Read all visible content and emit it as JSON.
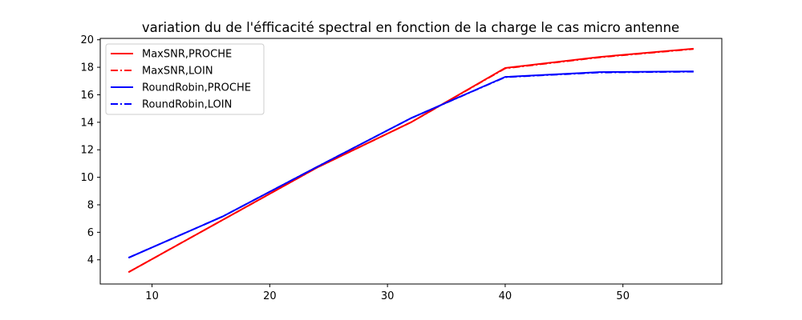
{
  "chart_data": {
    "type": "line",
    "title": "variation du de l'éfficacité spectral en fonction de la charge le cas micro antenne",
    "xlabel": "",
    "ylabel": "",
    "xlim": [
      5.6,
      58.4
    ],
    "ylim": [
      2.24,
      20.1
    ],
    "x_ticks": [
      10,
      20,
      30,
      40,
      50
    ],
    "y_ticks": [
      4,
      6,
      8,
      10,
      12,
      14,
      16,
      18,
      20
    ],
    "grid": false,
    "legend_position": "upper left",
    "series": [
      {
        "name": "MaxSNR,PROCHE",
        "color": "#ff0000",
        "linestyle": "solid",
        "x": [
          8,
          16,
          24,
          32,
          40,
          48,
          56
        ],
        "y": [
          3.1,
          6.9,
          10.7,
          14.0,
          17.95,
          18.75,
          19.35
        ]
      },
      {
        "name": "MaxSNR,LOIN",
        "color": "#ff0000",
        "linestyle": "dashdot",
        "x": [
          8,
          16,
          24,
          32,
          40,
          48,
          56
        ],
        "y": [
          3.1,
          6.9,
          10.7,
          14.0,
          17.92,
          18.72,
          19.33
        ]
      },
      {
        "name": "RoundRobin,PROCHE",
        "color": "#0000ff",
        "linestyle": "solid",
        "x": [
          8,
          16,
          24,
          32,
          40,
          48,
          56
        ],
        "y": [
          4.15,
          7.15,
          10.75,
          14.3,
          17.3,
          17.65,
          17.7
        ]
      },
      {
        "name": "RoundRobin,LOIN",
        "color": "#0000ff",
        "linestyle": "dashdot",
        "x": [
          8,
          16,
          24,
          32,
          40,
          48,
          56
        ],
        "y": [
          4.15,
          7.15,
          10.75,
          14.3,
          17.28,
          17.62,
          17.68
        ]
      }
    ]
  }
}
